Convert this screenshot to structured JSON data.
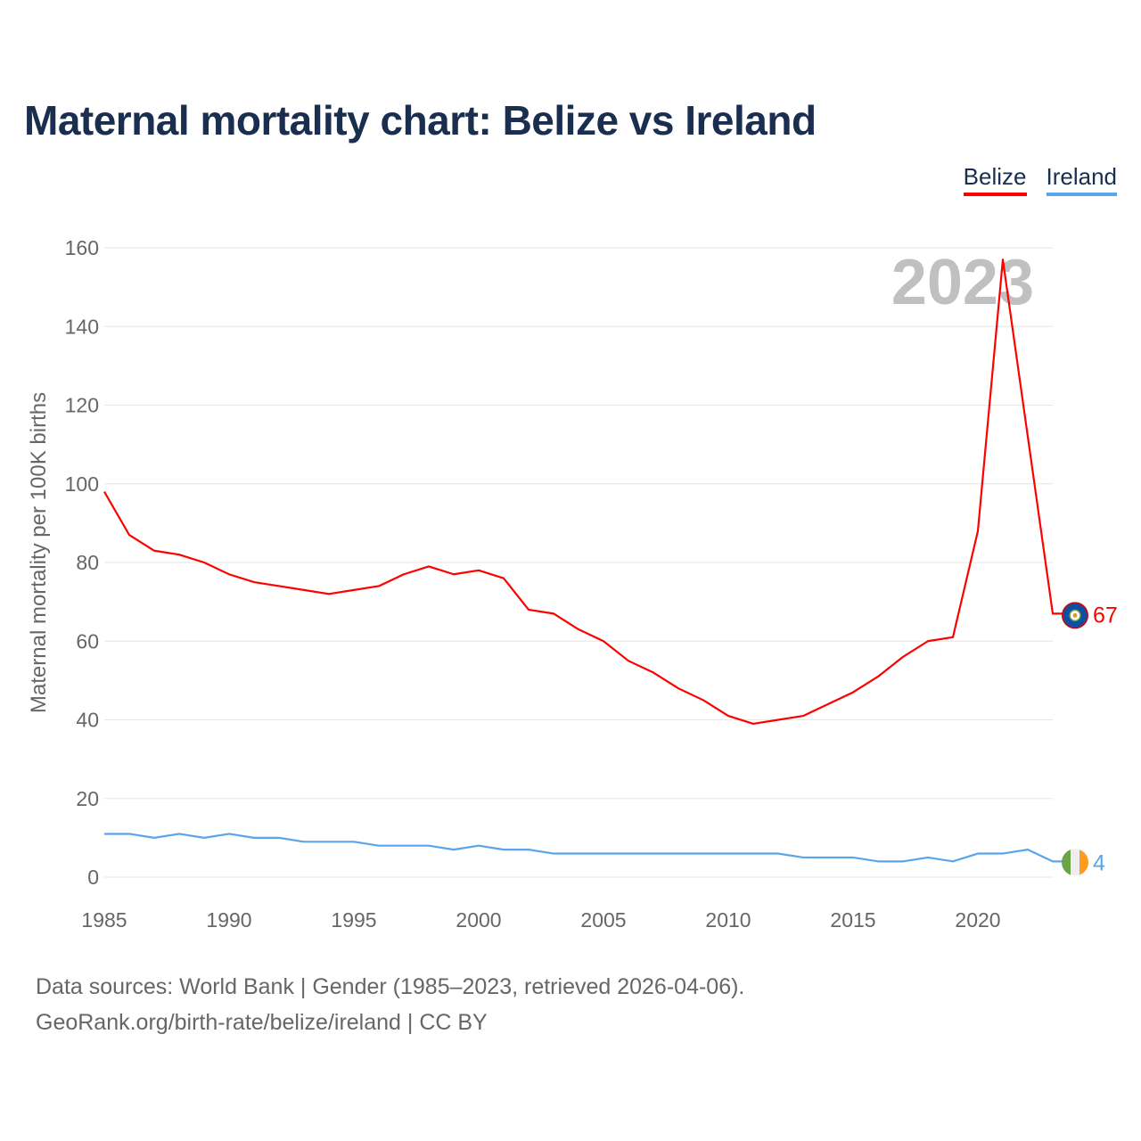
{
  "title": "Maternal mortality chart: Belize vs Ireland",
  "footer": {
    "line1": "Data sources: World Bank | Gender (1985–2023, retrieved 2026-04-06).",
    "line2": "GeoRank.org/birth-rate/belize/ireland | CC BY"
  },
  "chart_data": {
    "type": "line",
    "title": "Maternal mortality chart: Belize vs Ireland",
    "ylabel": "Maternal mortality per 100K births",
    "xlabel": "",
    "year_watermark": "2023",
    "ylim": [
      0,
      160
    ],
    "xlim": [
      1985,
      2023
    ],
    "yticks": [
      0,
      20,
      40,
      60,
      80,
      100,
      120,
      140,
      160
    ],
    "xticks": [
      1985,
      1990,
      1995,
      2000,
      2005,
      2010,
      2015,
      2020
    ],
    "grid": true,
    "legend_position": "top-right",
    "x": [
      1985,
      1986,
      1987,
      1988,
      1989,
      1990,
      1991,
      1992,
      1993,
      1994,
      1995,
      1996,
      1997,
      1998,
      1999,
      2000,
      2001,
      2002,
      2003,
      2004,
      2005,
      2006,
      2007,
      2008,
      2009,
      2010,
      2011,
      2012,
      2013,
      2014,
      2015,
      2016,
      2017,
      2018,
      2019,
      2020,
      2021,
      2022,
      2023
    ],
    "series": [
      {
        "name": "Belize",
        "color": "#ff0000",
        "end_label": "67",
        "values": [
          98,
          87,
          83,
          82,
          80,
          77,
          75,
          74,
          73,
          72,
          73,
          74,
          77,
          79,
          77,
          78,
          76,
          68,
          67,
          63,
          60,
          55,
          52,
          48,
          45,
          41,
          39,
          40,
          41,
          44,
          47,
          51,
          56,
          60,
          61,
          88,
          157,
          112,
          67
        ]
      },
      {
        "name": "Ireland",
        "color": "#5aa5ea",
        "end_label": "4",
        "values": [
          11,
          11,
          10,
          11,
          10,
          11,
          10,
          10,
          9,
          9,
          9,
          8,
          8,
          8,
          7,
          8,
          7,
          7,
          6,
          6,
          6,
          6,
          6,
          6,
          6,
          6,
          6,
          6,
          5,
          5,
          5,
          4,
          4,
          5,
          4,
          6,
          6,
          7,
          4
        ]
      }
    ]
  }
}
